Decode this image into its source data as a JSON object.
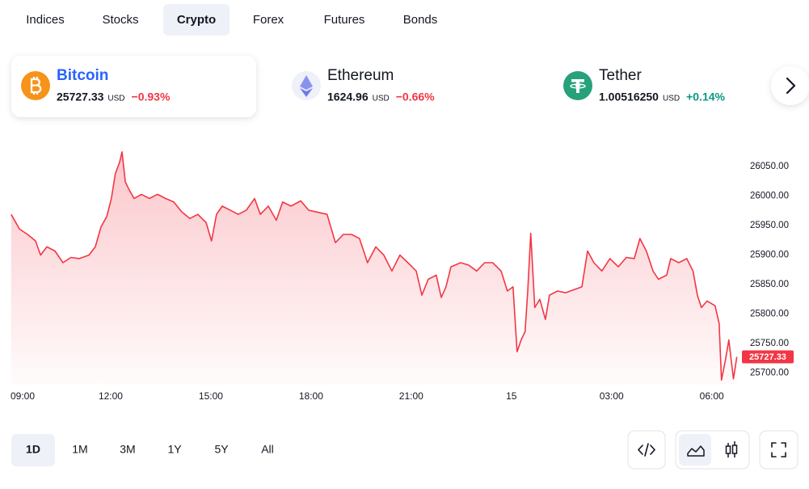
{
  "tabs": [
    "Indices",
    "Stocks",
    "Crypto",
    "Forex",
    "Futures",
    "Bonds"
  ],
  "active_tab": "Crypto",
  "assets": [
    {
      "name": "Bitcoin",
      "price": "25727.33",
      "unit": "USD",
      "change": "−0.93%",
      "change_color": "#f23645"
    },
    {
      "name": "Ethereum",
      "price": "1624.96",
      "unit": "USD",
      "change": "−0.66%",
      "change_color": "#f23645"
    },
    {
      "name": "Tether",
      "price": "1.00516250",
      "unit": "USD",
      "change": "+0.14%",
      "change_color": "#089981"
    }
  ],
  "active_asset": "Bitcoin",
  "ranges": [
    "1D",
    "1M",
    "3M",
    "1Y",
    "5Y",
    "All"
  ],
  "active_range": "1D",
  "chart_data": {
    "type": "line",
    "x": [
      0.02,
      0.27,
      0.51,
      0.75,
      0.9,
      1.09,
      1.33,
      1.57,
      1.81,
      2.06,
      2.35,
      2.54,
      2.71,
      2.88,
      3.02,
      3.14,
      3.27,
      3.34,
      3.44,
      3.56,
      3.7,
      3.92,
      4.16,
      4.4,
      4.65,
      4.89,
      5.13,
      5.37,
      5.61,
      5.86,
      6.02,
      6.17,
      6.34,
      6.58,
      6.82,
      7.06,
      7.31,
      7.48,
      7.72,
      7.96,
      8.15,
      8.4,
      8.69,
      8.93,
      9.17,
      9.48,
      9.73,
      9.97,
      10.21,
      10.45,
      10.69,
      10.94,
      11.18,
      11.42,
      11.66,
      11.9,
      12.15,
      12.32,
      12.51,
      12.75,
      12.9,
      13.04,
      13.19,
      13.48,
      13.72,
      13.96,
      14.2,
      14.44,
      14.69,
      14.88,
      15.05,
      15.17,
      15.29,
      15.41,
      15.49,
      15.58,
      15.7,
      15.85,
      16.02,
      16.14,
      16.38,
      16.62,
      16.86,
      17.11,
      17.28,
      17.47,
      17.71,
      17.95,
      18.2,
      18.44,
      18.68,
      18.85,
      19.04,
      19.24,
      19.4,
      19.65,
      19.77,
      20.01,
      20.25,
      20.44,
      20.57,
      20.69,
      20.86,
      21.1,
      21.22,
      21.29,
      21.41,
      21.51,
      21.65,
      21.75
    ],
    "series": [
      {
        "color": "#f23645",
        "values": [
          25969,
          25944,
          25935,
          25924,
          25900,
          25914,
          25907,
          25887,
          25896,
          25894,
          25900,
          25914,
          25948,
          25965,
          25996,
          26038,
          26058,
          26075,
          26024,
          26010,
          25996,
          26003,
          25996,
          26003,
          25996,
          25990,
          25973,
          25962,
          25969,
          25955,
          25924,
          25969,
          25983,
          25976,
          25969,
          25976,
          25996,
          25969,
          25983,
          25959,
          25990,
          25983,
          25992,
          25976,
          25973,
          25969,
          25921,
          25935,
          25935,
          25928,
          25887,
          25914,
          25900,
          25873,
          25900,
          25887,
          25873,
          25832,
          25859,
          25866,
          25828,
          25846,
          25880,
          25887,
          25883,
          25873,
          25887,
          25887,
          25873,
          25839,
          25846,
          25736,
          25756,
          25770,
          25839,
          25937,
          25811,
          25825,
          25791,
          25832,
          25839,
          25836,
          25841,
          25846,
          25907,
          25887,
          25873,
          25894,
          25880,
          25896,
          25894,
          25928,
          25907,
          25873,
          25859,
          25866,
          25894,
          25887,
          25894,
          25873,
          25832,
          25811,
          25822,
          25814,
          25784,
          25688,
          25722,
          25756,
          25690,
          25727.33
        ]
      }
    ],
    "xlim": [
      0,
      22
    ],
    "ylim": [
      25680,
      26090
    ],
    "xticks": [
      {
        "value": 0,
        "label": "09:00"
      },
      {
        "value": 3,
        "label": "12:00"
      },
      {
        "value": 6,
        "label": "15:00"
      },
      {
        "value": 9,
        "label": "18:00"
      },
      {
        "value": 12,
        "label": "21:00"
      },
      15,
      {
        "value": 18,
        "label": "03:00"
      },
      {
        "value": 21,
        "label": "06:00"
      }
    ],
    "yticks": [
      {
        "value": 25700,
        "label": "25700.00"
      },
      {
        "value": 25750,
        "label": "25750.00"
      },
      {
        "value": 25800,
        "label": "25800.00"
      },
      {
        "value": 25850,
        "label": "25850.00"
      },
      {
        "value": 25900,
        "label": "25900.00"
      },
      {
        "value": 25950,
        "label": "25950.00"
      },
      {
        "value": 26000,
        "label": "26000.00"
      },
      {
        "value": 26050,
        "label": "26050.00"
      }
    ]
  }
}
